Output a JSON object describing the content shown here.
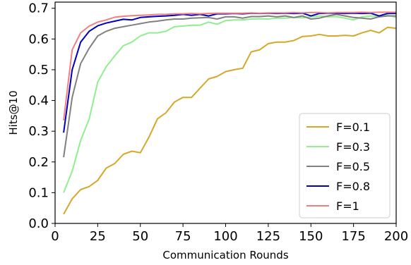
{
  "chart_data": {
    "type": "line",
    "xlabel": "Communication Rounds",
    "ylabel": "Hits@10",
    "xlim": [
      0,
      200
    ],
    "ylim": [
      0,
      0.72
    ],
    "xticks": [
      "0",
      "25",
      "50",
      "75",
      "100",
      "125",
      "150",
      "175",
      "200"
    ],
    "yticks": [
      "0.0",
      "0.1",
      "0.2",
      "0.3",
      "0.4",
      "0.5",
      "0.6",
      "0.7"
    ],
    "grid": false,
    "legend_position": "lower-right",
    "x": [
      5,
      10,
      15,
      20,
      25,
      30,
      35,
      40,
      45,
      50,
      55,
      60,
      65,
      70,
      75,
      80,
      85,
      90,
      95,
      100,
      105,
      110,
      115,
      120,
      125,
      130,
      135,
      140,
      145,
      150,
      155,
      160,
      165,
      170,
      175,
      180,
      185,
      190,
      195,
      200
    ],
    "series": [
      {
        "name": "F=0.1",
        "color": "#d4a82a",
        "values": [
          0.03,
          0.08,
          0.11,
          0.12,
          0.14,
          0.18,
          0.195,
          0.225,
          0.235,
          0.23,
          0.28,
          0.34,
          0.36,
          0.395,
          0.41,
          0.41,
          0.44,
          0.47,
          0.478,
          0.494,
          0.5,
          0.505,
          0.558,
          0.565,
          0.585,
          0.59,
          0.59,
          0.595,
          0.608,
          0.61,
          0.615,
          0.61,
          0.61,
          0.612,
          0.61,
          0.62,
          0.628,
          0.62,
          0.638,
          0.635
        ]
      },
      {
        "name": "F=0.3",
        "color": "#90ee90",
        "values": [
          0.1,
          0.17,
          0.27,
          0.34,
          0.46,
          0.51,
          0.545,
          0.578,
          0.59,
          0.61,
          0.62,
          0.62,
          0.625,
          0.64,
          0.642,
          0.645,
          0.645,
          0.655,
          0.648,
          0.66,
          0.662,
          0.662,
          0.665,
          0.666,
          0.665,
          0.668,
          0.668,
          0.67,
          0.669,
          0.672,
          0.675,
          0.672,
          0.673,
          0.668,
          0.662,
          0.672,
          0.675,
          0.674,
          0.678,
          0.67
        ]
      },
      {
        "name": "F=0.5",
        "color": "#808080",
        "values": [
          0.215,
          0.41,
          0.52,
          0.57,
          0.61,
          0.625,
          0.635,
          0.64,
          0.645,
          0.65,
          0.655,
          0.658,
          0.662,
          0.665,
          0.665,
          0.668,
          0.669,
          0.67,
          0.665,
          0.672,
          0.672,
          0.668,
          0.673,
          0.673,
          0.675,
          0.672,
          0.675,
          0.67,
          0.675,
          0.665,
          0.668,
          0.675,
          0.68,
          0.675,
          0.67,
          0.668,
          0.665,
          0.672,
          0.675,
          0.675
        ]
      },
      {
        "name": "F=0.8",
        "color": "#0000c0",
        "values": [
          0.295,
          0.5,
          0.59,
          0.625,
          0.643,
          0.652,
          0.658,
          0.664,
          0.662,
          0.67,
          0.672,
          0.674,
          0.675,
          0.677,
          0.68,
          0.677,
          0.68,
          0.675,
          0.682,
          0.682,
          0.683,
          0.682,
          0.684,
          0.683,
          0.684,
          0.683,
          0.684,
          0.683,
          0.684,
          0.675,
          0.683,
          0.684,
          0.684,
          0.683,
          0.684,
          0.683,
          0.684,
          0.675,
          0.683,
          0.683
        ]
      },
      {
        "name": "F=1",
        "color": "#f08080",
        "values": [
          0.335,
          0.565,
          0.62,
          0.642,
          0.655,
          0.662,
          0.671,
          0.674,
          0.676,
          0.677,
          0.678,
          0.68,
          0.68,
          0.682,
          0.682,
          0.683,
          0.682,
          0.683,
          0.684,
          0.684,
          0.684,
          0.684,
          0.685,
          0.684,
          0.685,
          0.685,
          0.685,
          0.686,
          0.685,
          0.686,
          0.686,
          0.685,
          0.686,
          0.686,
          0.686,
          0.687,
          0.686,
          0.687,
          0.687,
          0.687
        ]
      }
    ]
  }
}
